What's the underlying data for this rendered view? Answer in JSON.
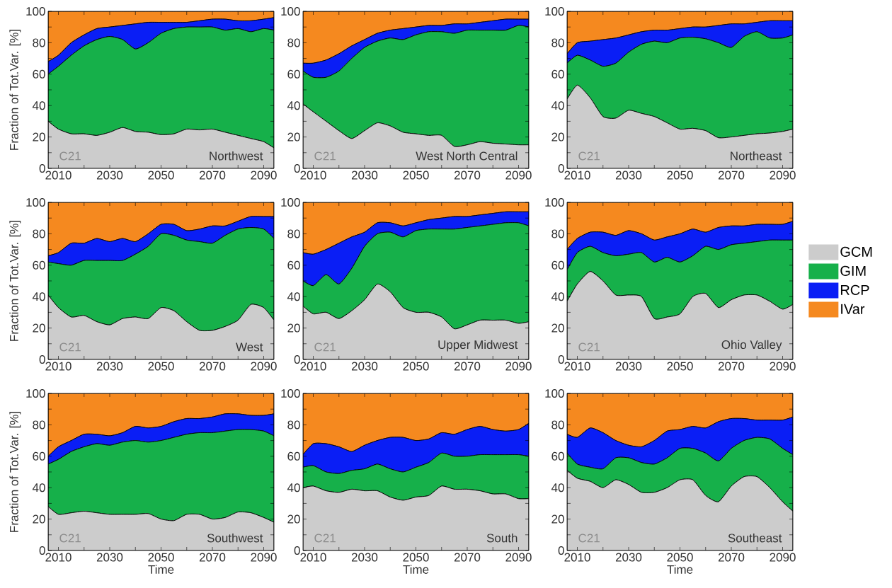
{
  "chart_data": [
    {
      "type": "area",
      "stacked": true,
      "ylabel": "Fraction of Tot.Var. [%]",
      "annotations": [
        "C21",
        "Northwest"
      ],
      "x": [
        2006,
        2010,
        2015,
        2020,
        2025,
        2030,
        2035,
        2040,
        2045,
        2050,
        2055,
        2060,
        2065,
        2070,
        2075,
        2080,
        2085,
        2090,
        2094
      ],
      "series": [
        {
          "color": "#cccccc",
          "values": [
            30,
            25,
            22,
            22,
            21,
            23,
            26,
            23.5,
            23,
            21.5,
            22,
            25,
            24.5,
            25,
            23,
            21,
            19,
            17,
            13
          ]
        },
        {
          "color": "#16b04a",
          "values": [
            30,
            40,
            50,
            56,
            61,
            61,
            56,
            52.5,
            57,
            64.5,
            67,
            65,
            65.5,
            65,
            65,
            68,
            68,
            72,
            75
          ]
        },
        {
          "color": "#0a1ef5",
          "values": [
            8,
            7,
            8,
            7,
            7,
            6,
            9,
            16,
            13,
            7,
            4,
            3,
            4,
            5,
            7,
            5,
            7,
            6,
            8
          ]
        },
        {
          "color": "#f5891f",
          "values": [
            32,
            28,
            20,
            15,
            11,
            10,
            9,
            8,
            7,
            7,
            7,
            7,
            6,
            5,
            5,
            6,
            6,
            5,
            4
          ]
        }
      ],
      "xlim": [
        2006,
        2094
      ],
      "ylim": [
        0,
        100
      ],
      "xticks": [
        2010,
        {
          "value": 2020,
          "label": null
        },
        2030,
        {
          "value": 2040,
          "label": null
        },
        2050,
        {
          "value": 2060,
          "label": null
        },
        2070,
        {
          "value": 2080,
          "label": null
        },
        2090
      ],
      "yticks": [
        0,
        {
          "value": 10,
          "label": null
        },
        20,
        {
          "value": 30,
          "label": null
        },
        40,
        {
          "value": 50,
          "label": null
        },
        60,
        {
          "value": 70,
          "label": null
        },
        80,
        {
          "value": 90,
          "label": null
        },
        100
      ]
    },
    {
      "type": "area",
      "stacked": true,
      "annotations": [
        "C21",
        "West North Central"
      ],
      "x": [
        2006,
        2010,
        2015,
        2020,
        2025,
        2030,
        2035,
        2040,
        2045,
        2050,
        2055,
        2060,
        2065,
        2070,
        2075,
        2080,
        2085,
        2090,
        2094
      ],
      "series": [
        {
          "color": "#cccccc",
          "values": [
            41,
            36,
            30,
            24,
            19,
            24,
            29,
            27,
            23,
            22,
            21,
            21,
            14,
            15,
            17,
            16,
            15.5,
            15,
            15
          ]
        },
        {
          "color": "#16b04a",
          "values": [
            21,
            22,
            28,
            38,
            51,
            53,
            52,
            56,
            59,
            63,
            66,
            66,
            72,
            73,
            71,
            72,
            72.5,
            76,
            75
          ]
        },
        {
          "color": "#0a1ef5",
          "values": [
            5,
            9,
            11,
            11,
            8,
            5,
            5,
            5,
            7,
            5,
            4,
            4,
            6,
            4,
            5,
            6,
            7,
            4,
            5
          ]
        },
        {
          "color": "#f5891f",
          "values": [
            33,
            33,
            31,
            27,
            22,
            18,
            14,
            12,
            11,
            10,
            9,
            9,
            8,
            8,
            7,
            6,
            5,
            5,
            5
          ]
        }
      ],
      "xlim": [
        2006,
        2094
      ],
      "ylim": [
        0,
        100
      ],
      "xticks": [
        2010,
        {
          "value": 2020,
          "label": null
        },
        2030,
        {
          "value": 2040,
          "label": null
        },
        2050,
        {
          "value": 2060,
          "label": null
        },
        2070,
        {
          "value": 2080,
          "label": null
        },
        2090
      ],
      "yticks": [
        0,
        {
          "value": 10,
          "label": null
        },
        20,
        {
          "value": 30,
          "label": null
        },
        40,
        {
          "value": 50,
          "label": null
        },
        60,
        {
          "value": 70,
          "label": null
        },
        80,
        {
          "value": 90,
          "label": null
        },
        100
      ]
    },
    {
      "type": "area",
      "stacked": true,
      "annotations": [
        "C21",
        "Northeast"
      ],
      "x": [
        2006,
        2010,
        2015,
        2020,
        2025,
        2030,
        2035,
        2040,
        2045,
        2050,
        2055,
        2060,
        2065,
        2070,
        2075,
        2080,
        2085,
        2090,
        2094
      ],
      "series": [
        {
          "color": "#cccccc",
          "values": [
            44,
            53,
            45,
            33,
            32,
            37,
            35,
            33,
            29,
            25,
            25.5,
            24,
            19.5,
            20,
            21,
            22,
            22.5,
            23.5,
            25
          ]
        },
        {
          "color": "#16b04a",
          "values": [
            23,
            19,
            24,
            32,
            35,
            37,
            44,
            48,
            51,
            58,
            58,
            58.5,
            60.5,
            57,
            63,
            65,
            60.5,
            59.5,
            60
          ]
        },
        {
          "color": "#0a1ef5",
          "values": [
            6,
            8,
            12,
            17,
            16,
            11,
            8,
            7,
            8,
            6,
            6.5,
            7.5,
            11,
            15,
            8,
            6,
            11,
            11,
            9
          ]
        },
        {
          "color": "#f5891f",
          "values": [
            27,
            20,
            19,
            18,
            17,
            15,
            13,
            12,
            12,
            11,
            10,
            10,
            9,
            8,
            8,
            7,
            6,
            6,
            6
          ]
        }
      ],
      "xlim": [
        2006,
        2094
      ],
      "ylim": [
        0,
        100
      ],
      "xticks": [
        2010,
        {
          "value": 2020,
          "label": null
        },
        2030,
        {
          "value": 2040,
          "label": null
        },
        2050,
        {
          "value": 2060,
          "label": null
        },
        2070,
        {
          "value": 2080,
          "label": null
        },
        2090
      ],
      "yticks": [
        0,
        {
          "value": 10,
          "label": null
        },
        20,
        {
          "value": 30,
          "label": null
        },
        40,
        {
          "value": 50,
          "label": null
        },
        60,
        {
          "value": 70,
          "label": null
        },
        80,
        {
          "value": 90,
          "label": null
        },
        100
      ]
    },
    {
      "type": "area",
      "stacked": true,
      "ylabel": "Fraction of Tot.Var. [%]",
      "annotations": [
        "C21",
        "West"
      ],
      "x": [
        2006,
        2010,
        2015,
        2020,
        2025,
        2030,
        2035,
        2040,
        2045,
        2050,
        2055,
        2060,
        2065,
        2070,
        2075,
        2080,
        2085,
        2090,
        2094
      ],
      "series": [
        {
          "color": "#cccccc",
          "values": [
            41,
            33,
            27,
            28,
            24,
            22,
            26,
            27,
            26,
            33,
            31,
            24,
            18.5,
            18.5,
            21,
            25,
            35,
            33,
            25
          ]
        },
        {
          "color": "#16b04a",
          "values": [
            21,
            28,
            33,
            35,
            39,
            41,
            37,
            40,
            46,
            47,
            48,
            52,
            56.5,
            55.5,
            58,
            58,
            49,
            50,
            52
          ]
        },
        {
          "color": "#0a1ef5",
          "values": [
            4,
            7,
            14,
            11,
            14,
            12,
            14,
            8,
            8,
            6,
            7,
            6,
            8,
            11,
            6,
            5,
            7,
            8,
            14
          ]
        },
        {
          "color": "#f5891f",
          "values": [
            34,
            32,
            26,
            26,
            23,
            25,
            23,
            25,
            20,
            14,
            14,
            18,
            17,
            15,
            15,
            12,
            9,
            9,
            9
          ]
        }
      ],
      "xlim": [
        2006,
        2094
      ],
      "ylim": [
        0,
        100
      ],
      "xticks": [
        2010,
        {
          "value": 2020,
          "label": null
        },
        2030,
        {
          "value": 2040,
          "label": null
        },
        2050,
        {
          "value": 2060,
          "label": null
        },
        2070,
        {
          "value": 2080,
          "label": null
        },
        2090
      ],
      "yticks": [
        0,
        {
          "value": 10,
          "label": null
        },
        20,
        {
          "value": 30,
          "label": null
        },
        40,
        {
          "value": 50,
          "label": null
        },
        60,
        {
          "value": 70,
          "label": null
        },
        80,
        {
          "value": 90,
          "label": null
        },
        100
      ]
    },
    {
      "type": "area",
      "stacked": true,
      "annotations": [
        "C21",
        "Upper Midwest"
      ],
      "x": [
        2006,
        2010,
        2015,
        2020,
        2025,
        2030,
        2035,
        2040,
        2045,
        2050,
        2055,
        2060,
        2065,
        2070,
        2075,
        2080,
        2085,
        2090,
        2094
      ],
      "series": [
        {
          "color": "#cccccc",
          "values": [
            34,
            29,
            30,
            26,
            31,
            38,
            48,
            43,
            33,
            30,
            30,
            27,
            19.5,
            22,
            25,
            25,
            25,
            23,
            24
          ]
        },
        {
          "color": "#16b04a",
          "values": [
            16,
            18,
            24,
            22,
            27,
            34,
            32,
            38,
            45,
            52,
            53,
            56,
            63.5,
            62,
            60,
            61,
            62,
            64,
            61
          ]
        },
        {
          "color": "#0a1ef5",
          "values": [
            18,
            20,
            16,
            26,
            20,
            9,
            7,
            6,
            7,
            5,
            6,
            7,
            8,
            7,
            7,
            7,
            7,
            7,
            9
          ]
        },
        {
          "color": "#f5891f",
          "values": [
            32,
            33,
            30,
            26,
            22,
            19,
            13,
            13,
            15,
            13,
            11,
            10,
            9,
            9,
            8,
            7,
            6,
            6,
            6
          ]
        }
      ],
      "xlim": [
        2006,
        2094
      ],
      "ylim": [
        0,
        100
      ],
      "xticks": [
        2010,
        {
          "value": 2020,
          "label": null
        },
        2030,
        {
          "value": 2040,
          "label": null
        },
        2050,
        {
          "value": 2060,
          "label": null
        },
        2070,
        {
          "value": 2080,
          "label": null
        },
        2090
      ],
      "yticks": [
        0,
        {
          "value": 10,
          "label": null
        },
        20,
        {
          "value": 30,
          "label": null
        },
        40,
        {
          "value": 50,
          "label": null
        },
        60,
        {
          "value": 70,
          "label": null
        },
        80,
        {
          "value": 90,
          "label": null
        },
        100
      ]
    },
    {
      "type": "area",
      "stacked": true,
      "legend": "right",
      "annotations": [
        "C21",
        "Ohio Valley"
      ],
      "x": [
        2006,
        2010,
        2015,
        2020,
        2025,
        2030,
        2035,
        2040,
        2045,
        2050,
        2055,
        2060,
        2065,
        2070,
        2075,
        2080,
        2085,
        2090,
        2094
      ],
      "series": [
        {
          "name": "GCM",
          "color": "#cccccc",
          "values": [
            37,
            48,
            56,
            50,
            41,
            41,
            40,
            26,
            27,
            29,
            40,
            42,
            33,
            38,
            41,
            41,
            37,
            32,
            35
          ]
        },
        {
          "name": "GIM",
          "color": "#16b04a",
          "values": [
            20,
            20,
            16,
            18,
            25,
            26,
            28,
            36,
            38,
            33,
            26,
            30,
            37,
            35,
            33,
            34,
            39,
            44,
            41
          ]
        },
        {
          "name": "RCP",
          "color": "#0a1ef5",
          "values": [
            13,
            9,
            9,
            13,
            13,
            15,
            12,
            14,
            13,
            18,
            17,
            9,
            14,
            12,
            11,
            11,
            10,
            10,
            12
          ]
        },
        {
          "name": "IVar",
          "color": "#f5891f",
          "values": [
            30,
            23,
            19,
            19,
            21,
            18,
            20,
            24,
            22,
            20,
            17,
            19,
            16,
            15,
            15,
            14,
            14,
            14,
            12
          ]
        }
      ],
      "xlim": [
        2006,
        2094
      ],
      "ylim": [
        0,
        100
      ],
      "xticks": [
        2010,
        {
          "value": 2020,
          "label": null
        },
        2030,
        {
          "value": 2040,
          "label": null
        },
        2050,
        {
          "value": 2060,
          "label": null
        },
        2070,
        {
          "value": 2080,
          "label": null
        },
        2090
      ],
      "yticks": [
        0,
        {
          "value": 10,
          "label": null
        },
        20,
        {
          "value": 30,
          "label": null
        },
        40,
        {
          "value": 50,
          "label": null
        },
        60,
        {
          "value": 70,
          "label": null
        },
        80,
        {
          "value": 90,
          "label": null
        },
        100
      ]
    },
    {
      "type": "area",
      "stacked": true,
      "xlabel": "Time",
      "ylabel": "Fraction of Tot.Var. [%]",
      "annotations": [
        "C21",
        "Southwest"
      ],
      "x": [
        2006,
        2010,
        2015,
        2020,
        2025,
        2030,
        2035,
        2040,
        2045,
        2050,
        2055,
        2060,
        2065,
        2070,
        2075,
        2080,
        2085,
        2090,
        2094
      ],
      "series": [
        {
          "color": "#cccccc",
          "values": [
            28,
            23,
            24,
            25,
            24,
            23,
            23,
            23,
            23.5,
            20,
            19,
            23,
            23,
            20,
            21,
            24.5,
            24,
            21,
            18
          ]
        },
        {
          "color": "#16b04a",
          "values": [
            27,
            35,
            39,
            41,
            44,
            44,
            46,
            47,
            45.5,
            50,
            53,
            51,
            52,
            55,
            55,
            52.5,
            53,
            55,
            55
          ]
        },
        {
          "color": "#0a1ef5",
          "values": [
            5,
            8,
            7,
            8,
            6,
            6,
            6,
            9,
            9,
            9,
            10,
            10,
            9,
            10,
            11,
            10,
            9,
            10,
            14
          ]
        },
        {
          "color": "#f5891f",
          "values": [
            40,
            34,
            30,
            26,
            26,
            27,
            25,
            21,
            22,
            21,
            18,
            16,
            16,
            15,
            13,
            13,
            14,
            14,
            13
          ]
        }
      ],
      "xlim": [
        2006,
        2094
      ],
      "ylim": [
        0,
        100
      ],
      "xticks": [
        2010,
        {
          "value": 2020,
          "label": null
        },
        2030,
        {
          "value": 2040,
          "label": null
        },
        2050,
        {
          "value": 2060,
          "label": null
        },
        2070,
        {
          "value": 2080,
          "label": null
        },
        2090
      ],
      "yticks": [
        0,
        {
          "value": 10,
          "label": null
        },
        20,
        {
          "value": 30,
          "label": null
        },
        40,
        {
          "value": 50,
          "label": null
        },
        60,
        {
          "value": 70,
          "label": null
        },
        80,
        {
          "value": 90,
          "label": null
        },
        100
      ]
    },
    {
      "type": "area",
      "stacked": true,
      "xlabel": "Time",
      "annotations": [
        "C21",
        "South"
      ],
      "x": [
        2006,
        2010,
        2015,
        2020,
        2025,
        2030,
        2035,
        2040,
        2045,
        2050,
        2055,
        2060,
        2065,
        2070,
        2075,
        2080,
        2085,
        2090,
        2094
      ],
      "series": [
        {
          "color": "#cccccc",
          "values": [
            40,
            41,
            38,
            37,
            39,
            38,
            38,
            34,
            32,
            34,
            35,
            41,
            39,
            39,
            38,
            36,
            36,
            33,
            33
          ]
        },
        {
          "color": "#16b04a",
          "values": [
            13,
            13,
            12,
            12,
            12,
            14,
            17,
            18,
            18,
            19,
            21,
            21,
            21,
            21,
            23,
            25,
            25,
            28,
            27
          ]
        },
        {
          "color": "#0a1ef5",
          "values": [
            8,
            14,
            18,
            17,
            12,
            15,
            15,
            20,
            22,
            17,
            15,
            13,
            14,
            17,
            18,
            16,
            15,
            16,
            21
          ]
        },
        {
          "color": "#f5891f",
          "values": [
            39,
            32,
            32,
            34,
            37,
            33,
            30,
            28,
            28,
            30,
            29,
            25,
            26,
            23,
            21,
            23,
            24,
            23,
            19
          ]
        }
      ],
      "xlim": [
        2006,
        2094
      ],
      "ylim": [
        0,
        100
      ],
      "xticks": [
        2010,
        {
          "value": 2020,
          "label": null
        },
        2030,
        {
          "value": 2040,
          "label": null
        },
        2050,
        {
          "value": 2060,
          "label": null
        },
        2070,
        {
          "value": 2080,
          "label": null
        },
        2090
      ],
      "yticks": [
        0,
        {
          "value": 10,
          "label": null
        },
        20,
        {
          "value": 30,
          "label": null
        },
        40,
        {
          "value": 50,
          "label": null
        },
        60,
        {
          "value": 70,
          "label": null
        },
        80,
        {
          "value": 90,
          "label": null
        },
        100
      ]
    },
    {
      "type": "area",
      "stacked": true,
      "xlabel": "Time",
      "annotations": [
        "C21",
        "Southeast"
      ],
      "x": [
        2006,
        2010,
        2015,
        2020,
        2025,
        2030,
        2035,
        2040,
        2045,
        2050,
        2055,
        2060,
        2065,
        2070,
        2075,
        2080,
        2085,
        2090,
        2094
      ],
      "series": [
        {
          "color": "#cccccc",
          "values": [
            51,
            46,
            44,
            40,
            45,
            42,
            37,
            37,
            40,
            45,
            45,
            35,
            31,
            41,
            47,
            47,
            40,
            31,
            25
          ]
        },
        {
          "color": "#16b04a",
          "values": [
            11,
            9,
            9,
            12,
            14,
            17,
            19,
            18,
            19,
            20,
            20,
            27,
            26,
            24,
            23,
            25,
            31,
            34,
            36
          ]
        },
        {
          "color": "#0a1ef5",
          "values": [
            12,
            17,
            25,
            23,
            11,
            8,
            10,
            15,
            17,
            12,
            14,
            16,
            25,
            19,
            14,
            11,
            12,
            18,
            24
          ]
        },
        {
          "color": "#f5891f",
          "values": [
            26,
            28,
            22,
            25,
            30,
            33,
            34,
            30,
            24,
            23,
            21,
            22,
            18,
            16,
            16,
            17,
            17,
            17,
            15
          ]
        }
      ],
      "xlim": [
        2006,
        2094
      ],
      "ylim": [
        0,
        100
      ],
      "xticks": [
        2010,
        {
          "value": 2020,
          "label": null
        },
        2030,
        {
          "value": 2040,
          "label": null
        },
        2050,
        {
          "value": 2060,
          "label": null
        },
        2070,
        {
          "value": 2080,
          "label": null
        },
        2090
      ],
      "yticks": [
        0,
        {
          "value": 10,
          "label": null
        },
        20,
        {
          "value": 30,
          "label": null
        },
        40,
        {
          "value": 50,
          "label": null
        },
        60,
        {
          "value": 70,
          "label": null
        },
        80,
        {
          "value": 90,
          "label": null
        },
        100
      ]
    }
  ]
}
